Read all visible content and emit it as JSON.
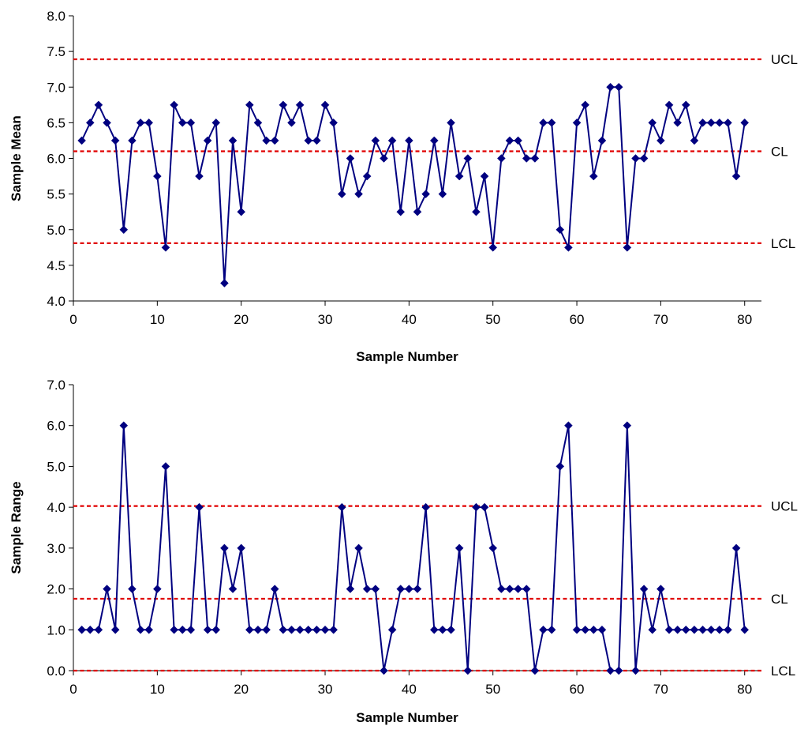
{
  "chart_data": [
    {
      "type": "line",
      "xlabel": "Sample Number",
      "ylabel": "Sample Mean",
      "xlim": [
        0,
        82
      ],
      "ylim": [
        4.0,
        8.0
      ],
      "x_ticks": [
        0,
        10,
        20,
        30,
        40,
        50,
        60,
        70,
        80
      ],
      "y_ticks": [
        "4.0",
        "4.5",
        "5.0",
        "5.5",
        "6.0",
        "6.5",
        "7.0",
        "7.5",
        "8.0"
      ],
      "series_color": "#000080",
      "control_color": "#e00000",
      "control_lines": [
        {
          "label": "UCL",
          "value": 7.39
        },
        {
          "label": "CL",
          "value": 6.1
        },
        {
          "label": "LCL",
          "value": 4.81
        }
      ],
      "series": [
        {
          "x": [
            1,
            2,
            3,
            4,
            5,
            6,
            7,
            8,
            9,
            10,
            11,
            12,
            13,
            14,
            15,
            16,
            17,
            18,
            19,
            20,
            21,
            22,
            23,
            24,
            25,
            26,
            27,
            28,
            29,
            30,
            31,
            32,
            33,
            34,
            35,
            36,
            37,
            38,
            39,
            40,
            41,
            42,
            43,
            44,
            45,
            46,
            47,
            48,
            49,
            50,
            51,
            52,
            53,
            54,
            55,
            56,
            57,
            58,
            59,
            60,
            61,
            62,
            63,
            64,
            65,
            66,
            67,
            68,
            69,
            70,
            71,
            72,
            73,
            74,
            75,
            76,
            77,
            78,
            79,
            80
          ],
          "values": [
            6.25,
            6.5,
            6.75,
            6.5,
            6.25,
            5.0,
            6.25,
            6.5,
            6.5,
            5.75,
            4.75,
            6.75,
            6.5,
            6.5,
            5.75,
            6.25,
            6.5,
            4.25,
            6.25,
            5.25,
            6.75,
            6.5,
            6.25,
            6.25,
            6.75,
            6.5,
            6.75,
            6.25,
            6.25,
            6.75,
            6.5,
            5.5,
            6.0,
            5.5,
            5.75,
            6.25,
            6.0,
            6.25,
            5.25,
            6.25,
            5.25,
            5.5,
            6.25,
            5.5,
            6.5,
            5.75,
            6.0,
            5.25,
            5.75,
            4.75,
            6.0,
            6.25,
            6.25,
            6.0,
            6.0,
            6.5,
            6.5,
            5.0,
            4.75,
            6.5,
            6.75,
            5.75,
            6.25,
            7.0,
            7.0,
            4.75,
            6.0,
            6.0,
            6.5,
            6.25,
            6.75,
            6.5,
            6.75,
            6.25,
            6.5,
            6.5,
            6.5,
            6.5,
            5.75,
            6.5
          ]
        }
      ]
    },
    {
      "type": "line",
      "xlabel": "Sample Number",
      "ylabel": "Sample Range",
      "xlim": [
        0,
        82
      ],
      "ylim": [
        0.0,
        7.0
      ],
      "x_ticks": [
        0,
        10,
        20,
        30,
        40,
        50,
        60,
        70,
        80
      ],
      "y_ticks": [
        "0.0",
        "1.0",
        "2.0",
        "3.0",
        "4.0",
        "5.0",
        "6.0",
        "7.0"
      ],
      "series_color": "#000080",
      "control_color": "#e00000",
      "control_lines": [
        {
          "label": "UCL",
          "value": 4.03
        },
        {
          "label": "CL",
          "value": 1.76
        },
        {
          "label": "LCL",
          "value": 0.0
        }
      ],
      "series": [
        {
          "x": [
            1,
            2,
            3,
            4,
            5,
            6,
            7,
            8,
            9,
            10,
            11,
            12,
            13,
            14,
            15,
            16,
            17,
            18,
            19,
            20,
            21,
            22,
            23,
            24,
            25,
            26,
            27,
            28,
            29,
            30,
            31,
            32,
            33,
            34,
            35,
            36,
            37,
            38,
            39,
            40,
            41,
            42,
            43,
            44,
            45,
            46,
            47,
            48,
            49,
            50,
            51,
            52,
            53,
            54,
            55,
            56,
            57,
            58,
            59,
            60,
            61,
            62,
            63,
            64,
            65,
            66,
            67,
            68,
            69,
            70,
            71,
            72,
            73,
            74,
            75,
            76,
            77,
            78,
            79,
            80
          ],
          "values": [
            1,
            1,
            1,
            2,
            1,
            6,
            2,
            1,
            1,
            2,
            5,
            1,
            1,
            1,
            4,
            1,
            1,
            3,
            2,
            3,
            1,
            1,
            1,
            2,
            1,
            1,
            1,
            1,
            1,
            1,
            1,
            4,
            2,
            3,
            2,
            2,
            0,
            1,
            2,
            2,
            2,
            4,
            1,
            1,
            1,
            3,
            0,
            4,
            4,
            3,
            2,
            2,
            2,
            2,
            0,
            1,
            1,
            5,
            6,
            1,
            1,
            1,
            1,
            0,
            0,
            6,
            0,
            2,
            1,
            2,
            1,
            1,
            1,
            1,
            1,
            1,
            1,
            1,
            3,
            1
          ]
        }
      ]
    }
  ]
}
